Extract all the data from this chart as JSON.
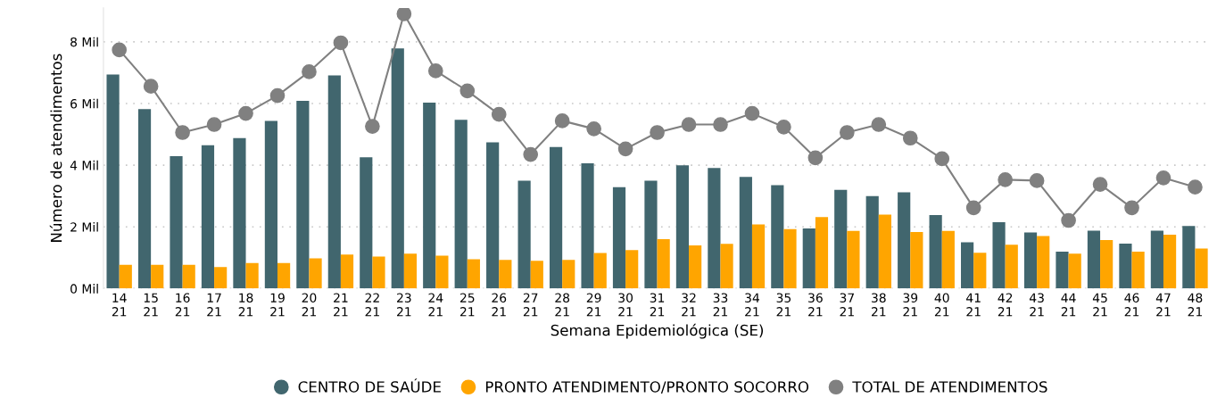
{
  "chart_data": {
    "type": "bar",
    "xlabel": "Semana Epidemiológica (SE)",
    "ylabel": "Número de atendimentos",
    "categories": [
      "14\n21",
      "15\n21",
      "16\n21",
      "17\n21",
      "18\n21",
      "19\n21",
      "20\n21",
      "21\n21",
      "22\n21",
      "23\n21",
      "24\n21",
      "25\n21",
      "26\n21",
      "27\n21",
      "28\n21",
      "29\n21",
      "30\n21",
      "31\n21",
      "32\n21",
      "33\n21",
      "34\n21",
      "35\n21",
      "36\n21",
      "37\n21",
      "38\n21",
      "39\n21",
      "40\n21",
      "41\n21",
      "42\n21",
      "43\n21",
      "44\n21",
      "45\n21",
      "46\n21",
      "47\n21",
      "48\n21"
    ],
    "series": [
      {
        "name": "CENTRO DE SAÚDE",
        "color": "#41666e",
        "values": [
          6.94,
          5.82,
          4.29,
          4.65,
          4.88,
          5.44,
          6.09,
          6.91,
          4.26,
          7.79,
          6.03,
          5.47,
          4.74,
          3.5,
          4.59,
          4.06,
          3.29,
          3.5,
          4.0,
          3.91,
          3.62,
          3.35,
          1.95,
          3.2,
          3.0,
          3.12,
          2.38,
          1.5,
          2.15,
          1.82,
          1.2,
          1.88,
          1.46,
          1.88,
          2.03
        ]
      },
      {
        "name": "PRONTO ATENDIMENTO/PRONTO SOCORRO",
        "color": "#ffa500",
        "values": [
          0.77,
          0.77,
          0.77,
          0.7,
          0.83,
          0.83,
          0.98,
          1.1,
          1.04,
          1.13,
          1.07,
          0.95,
          0.93,
          0.9,
          0.93,
          1.15,
          1.25,
          1.6,
          1.4,
          1.45,
          2.08,
          1.93,
          2.32,
          1.87,
          2.4,
          1.83,
          1.87,
          1.16,
          1.42,
          1.7,
          1.13,
          1.57,
          1.2,
          1.75,
          1.3
        ]
      },
      {
        "name": "TOTAL DE ATENDIMENTOS",
        "color": "#808080",
        "type": "line",
        "marker": "circle",
        "values": [
          7.74,
          6.56,
          5.06,
          5.32,
          5.68,
          6.26,
          7.03,
          7.97,
          5.26,
          8.91,
          7.06,
          6.41,
          5.65,
          4.35,
          5.44,
          5.18,
          4.53,
          5.06,
          5.32,
          5.32,
          5.68,
          5.24,
          4.24,
          5.06,
          5.32,
          4.88,
          4.21,
          2.62,
          3.53,
          3.5,
          2.21,
          3.38,
          2.62,
          3.59,
          3.29
        ]
      }
    ],
    "ylim": [
      0,
      9.1
    ],
    "yticks": [
      {
        "value": 0,
        "label": "0 Mil"
      },
      {
        "value": 2,
        "label": "2 Mil"
      },
      {
        "value": 4,
        "label": "4 Mil"
      },
      {
        "value": 6,
        "label": "6 Mil"
      },
      {
        "value": 8,
        "label": "8 Mil"
      }
    ],
    "grid": "y",
    "legend": "bottom"
  }
}
